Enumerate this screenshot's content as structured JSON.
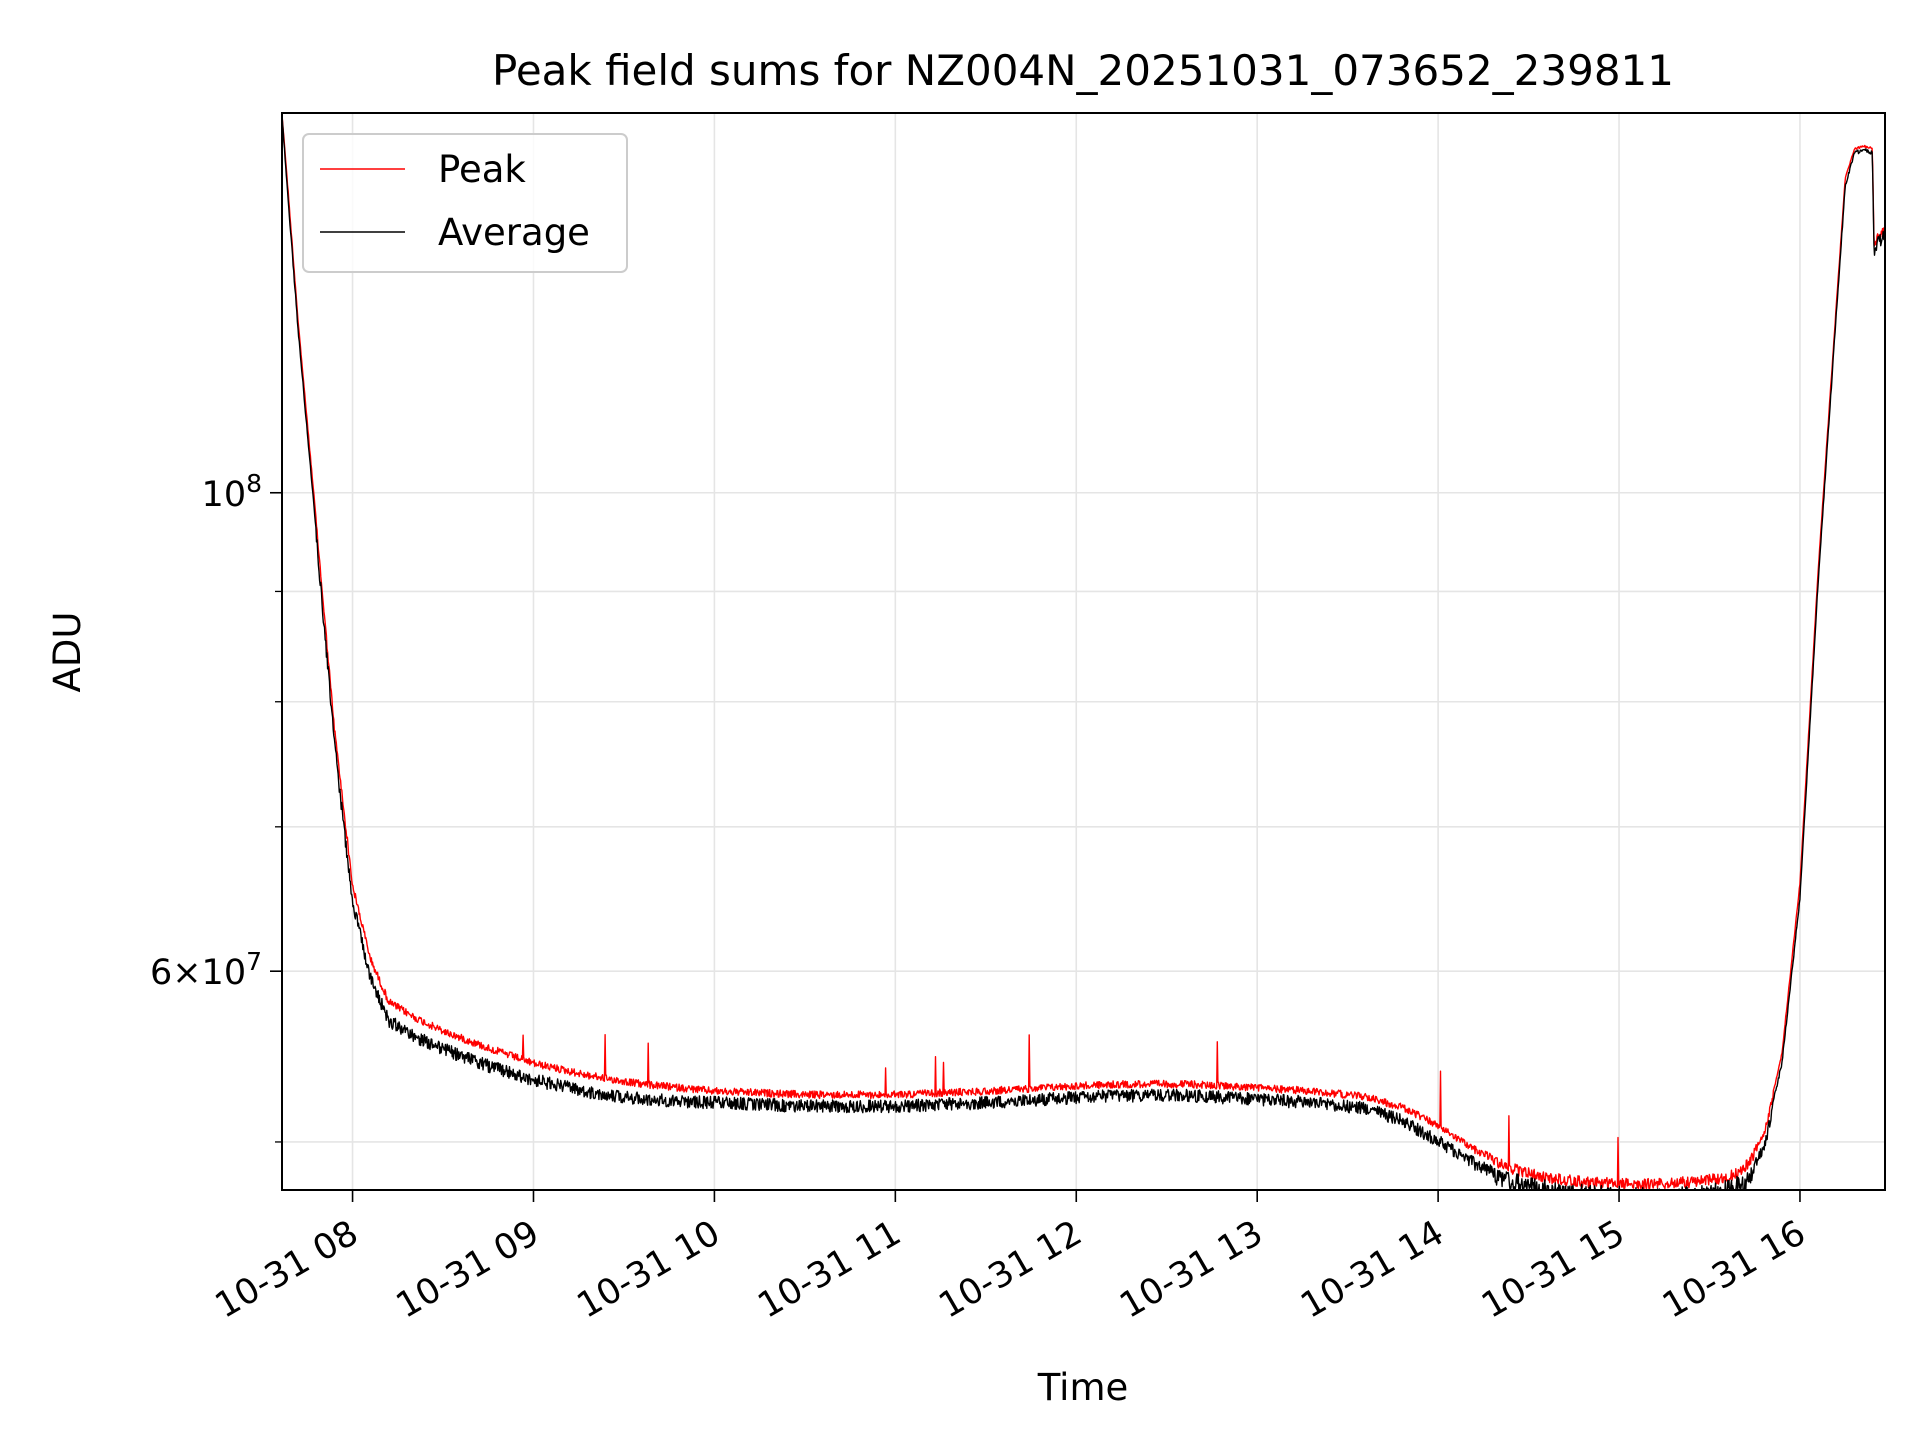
{
  "chart_data": {
    "type": "line",
    "title": "Peak field sums for NZ004N_20251031_073652_239811",
    "xlabel": "Time",
    "ylabel": "ADU",
    "yscale": "log",
    "ylim": [
      47500000,
      150000000
    ],
    "xlim": [
      7.61,
      16.47
    ],
    "grid": true,
    "legend_location": "top-left",
    "x_tick_labels": [
      "10-31 08",
      "10-31 09",
      "10-31 10",
      "10-31 11",
      "10-31 12",
      "10-31 13",
      "10-31 14",
      "10-31 15",
      "10-31 16"
    ],
    "x_tick_values": [
      8,
      9,
      10,
      11,
      12,
      13,
      14,
      15,
      16
    ],
    "y_major_ticks": [
      {
        "value": 100000000,
        "mantissa": "",
        "base": "10",
        "exp": "8"
      },
      {
        "value": 60000000,
        "mantissa": "6",
        "base": "10",
        "exp": "7"
      }
    ],
    "y_minor_ticks": [
      90000000,
      80000000,
      70000000,
      50000000
    ],
    "x_unit": "hour of 2025-10-31",
    "series": [
      {
        "name": "Peak",
        "color": "#ff0000",
        "x": [
          7.61,
          7.63,
          7.7,
          7.8,
          7.9,
          8.0,
          8.1,
          8.2,
          8.35,
          8.5,
          8.75,
          9.0,
          9.3,
          9.6,
          10.0,
          10.5,
          11.0,
          11.5,
          12.0,
          12.3,
          12.6,
          12.8,
          13.0,
          13.3,
          13.6,
          13.8,
          14.0,
          14.2,
          14.4,
          14.6,
          14.8,
          15.0,
          15.2,
          15.4,
          15.5,
          15.6,
          15.7,
          15.8,
          15.9,
          16.0,
          16.1,
          16.15,
          16.2,
          16.25,
          16.3,
          16.35,
          16.38,
          16.4,
          16.41,
          16.43,
          16.47
        ],
        "values": [
          150000000,
          143000000,
          120000000,
          97000000,
          78000000,
          66000000,
          61000000,
          58300000,
          57300000,
          56500000,
          55500000,
          54600000,
          53900000,
          53400000,
          53000000,
          52800000,
          52800000,
          53000000,
          53300000,
          53400000,
          53400000,
          53300000,
          53200000,
          53000000,
          52700000,
          52100000,
          51100000,
          49800000,
          48900000,
          48400000,
          48200000,
          48100000,
          48100000,
          48200000,
          48300000,
          48400000,
          49000000,
          50500000,
          55000000,
          66000000,
          92000000,
          106000000,
          122000000,
          140000000,
          144500000,
          145000000,
          144800000,
          144500000,
          130000000,
          132000000,
          133000000
        ]
      },
      {
        "name": "Average",
        "color": "#000000",
        "x": [
          7.61,
          7.63,
          7.7,
          7.8,
          7.9,
          8.0,
          8.1,
          8.2,
          8.35,
          8.5,
          8.75,
          9.0,
          9.3,
          9.6,
          10.0,
          10.5,
          11.0,
          11.5,
          12.0,
          12.3,
          12.6,
          12.8,
          13.0,
          13.3,
          13.6,
          13.8,
          14.0,
          14.2,
          14.4,
          14.6,
          14.8,
          15.0,
          15.2,
          15.4,
          15.5,
          15.6,
          15.7,
          15.8,
          15.9,
          16.0,
          16.1,
          16.15,
          16.2,
          16.25,
          16.3,
          16.35,
          16.38,
          16.4,
          16.41,
          16.43,
          16.47
        ],
        "values": [
          150000000,
          142000000,
          119000000,
          96000000,
          77000000,
          65000000,
          60000000,
          57300000,
          56300000,
          55600000,
          54600000,
          53800000,
          53100000,
          52700000,
          52500000,
          52300000,
          52300000,
          52500000,
          52800000,
          52900000,
          52900000,
          52800000,
          52700000,
          52500000,
          52200000,
          51500000,
          50400000,
          49200000,
          48400000,
          48000000,
          47800000,
          47700000,
          47600000,
          47700000,
          47800000,
          48000000,
          48400000,
          50000000,
          54500000,
          65000000,
          91000000,
          105000000,
          121000000,
          139000000,
          144000000,
          144500000,
          144300000,
          144000000,
          129000000,
          131500000,
          132500000
        ]
      }
    ]
  }
}
